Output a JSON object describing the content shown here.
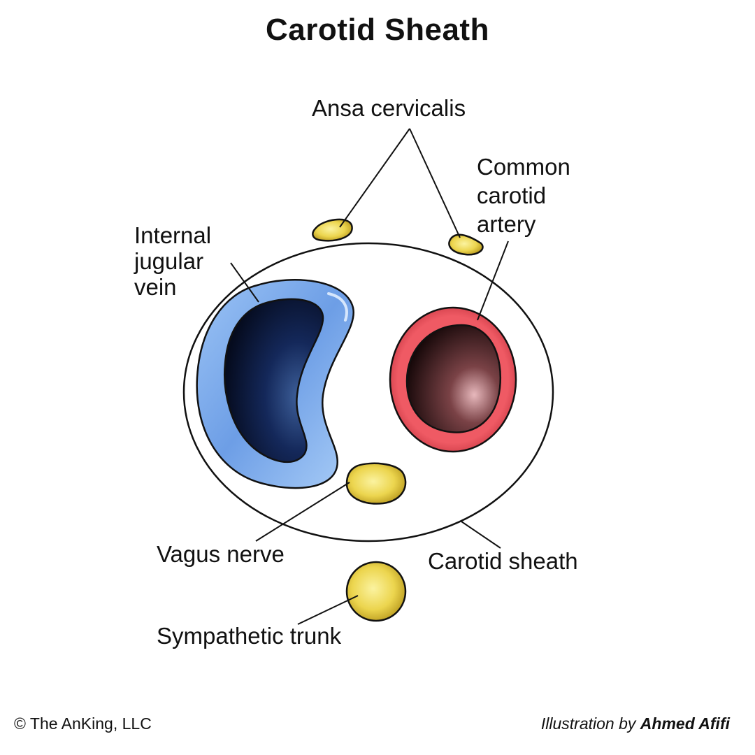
{
  "title": "Carotid Sheath",
  "labels": {
    "ansa_cervicalis": "Ansa cervicalis",
    "common_carotid_artery": [
      "Common",
      "carotid",
      "artery"
    ],
    "internal_jugular_vein": [
      "Internal",
      "jugular",
      "vein"
    ],
    "vagus_nerve": "Vagus nerve",
    "carotid_sheath": "Carotid sheath",
    "sympathetic_trunk": "Sympathetic trunk"
  },
  "footer": {
    "copyright": "© The AnKing, LLC",
    "illustration_prefix": "Illustration by ",
    "illustrator": "Ahmed Afifi"
  },
  "colors": {
    "vein_outer": "#7fb2f0",
    "vein_lumen": "#0c1a3a",
    "artery_wall": "#e8555f",
    "artery_lumen": "#3a1a1e",
    "nerve": "#e8cf4a",
    "outline": "#111111"
  }
}
